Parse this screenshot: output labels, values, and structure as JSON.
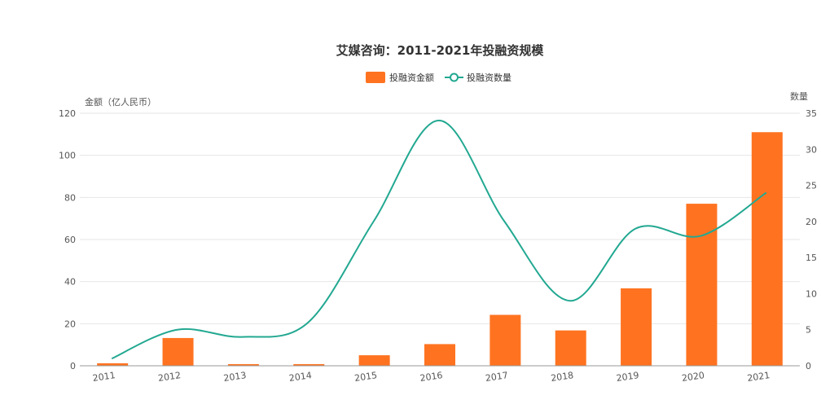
{
  "chart_data": {
    "type": "bar",
    "title": "艾媒咨询：2011-2021年投融资规模",
    "categories": [
      "2011",
      "2012",
      "2013",
      "2014",
      "2015",
      "2016",
      "2017",
      "2018",
      "2019",
      "2020",
      "2021"
    ],
    "series": [
      {
        "name": "投融资金额",
        "type": "bar",
        "axis": "left",
        "color": "#ff7320",
        "values": [
          1.2,
          13.2,
          0.8,
          0.8,
          5.0,
          10.3,
          24.2,
          16.8,
          36.8,
          77.0,
          111.0
        ]
      },
      {
        "name": "投融资数量",
        "type": "line",
        "axis": "right",
        "color": "#22a891",
        "marker": "hollow-circle",
        "values": [
          1,
          5,
          4,
          6,
          20,
          34,
          20,
          9,
          19,
          18,
          24
        ]
      }
    ],
    "ylabel": "金额（亿人民币）",
    "ylim": [
      0,
      120
    ],
    "yticks": [
      "0",
      "20",
      "40",
      "60",
      "80",
      "100",
      "120"
    ],
    "y2label": "数量",
    "y2lim": [
      0,
      35
    ],
    "y2ticks": [
      "0",
      "5",
      "10",
      "15",
      "20",
      "25",
      "30",
      "35"
    ],
    "grid": true,
    "legend_position": "top-center"
  }
}
